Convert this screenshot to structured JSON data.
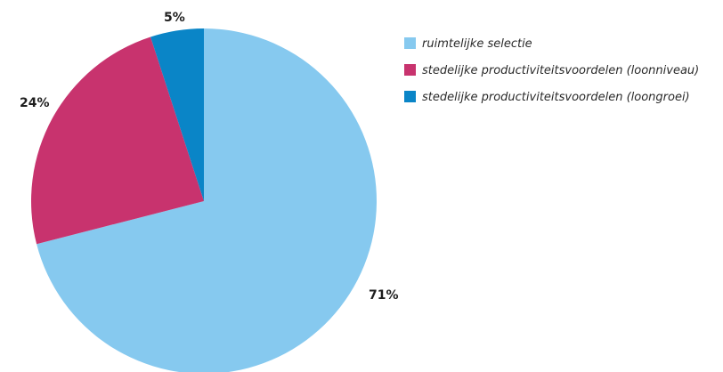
{
  "chart_data": {
    "type": "pie",
    "slices": [
      {
        "name": "ruimtelijke selectie",
        "value": 71,
        "label": "71%",
        "color": "#86c9ef"
      },
      {
        "name": "stedelijke productiviteitsvoordelen (loonniveau)",
        "value": 24,
        "label": "24%",
        "color": "#c8336e"
      },
      {
        "name": "stedelijke productiviteitsvoordelen (loongroei)",
        "value": 5,
        "label": "5%",
        "color": "#0a85c7"
      }
    ],
    "start": "top",
    "direction": "clockwise",
    "legend_position": "top-right"
  }
}
